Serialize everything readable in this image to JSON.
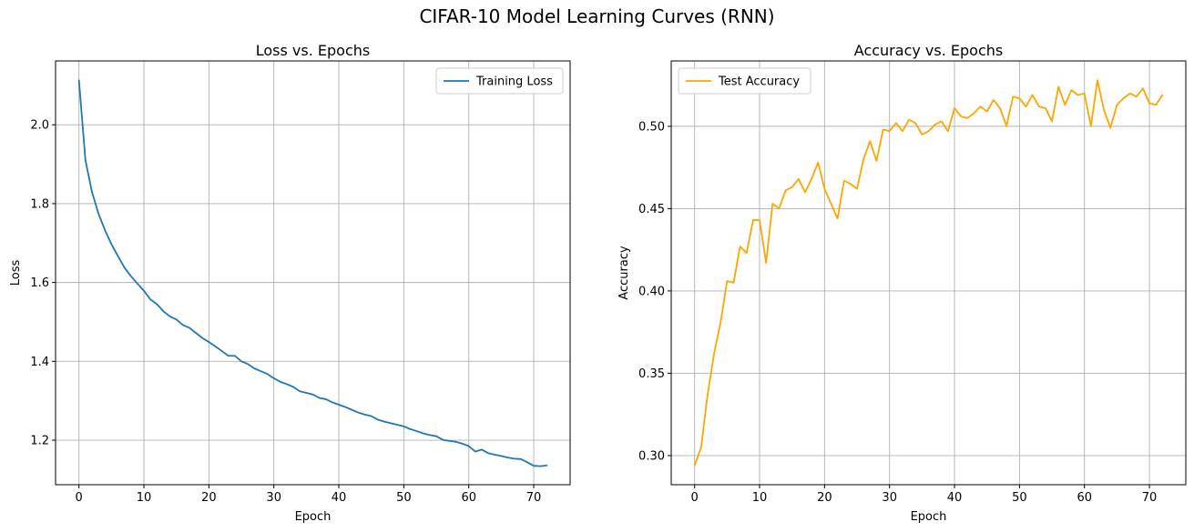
{
  "figure": {
    "suptitle": "CIFAR-10 Model Learning Curves (RNN)"
  },
  "colors": {
    "loss": "#1f77b4",
    "accuracy": "#ffa500",
    "grid": "#b0b0b0",
    "axis": "#000000"
  },
  "chart_data": [
    {
      "type": "line",
      "title": "Loss vs. Epochs",
      "xlabel": "Epoch",
      "ylabel": "Loss",
      "xlim": [
        -3.6,
        75.6
      ],
      "ylim": [
        1.087,
        2.162
      ],
      "xticks": [
        0,
        10,
        20,
        30,
        40,
        50,
        60,
        70
      ],
      "yticks": [
        1.2,
        1.4,
        1.6,
        1.8,
        2.0
      ],
      "ytick_labels": [
        "1.2",
        "1.4",
        "1.6",
        "1.8",
        "2.0"
      ],
      "grid": true,
      "legend": "upper right",
      "series": [
        {
          "name": "Training Loss",
          "color": "#1f77b4",
          "x": [
            0,
            1,
            2,
            3,
            4,
            5,
            6,
            7,
            8,
            9,
            10,
            11,
            12,
            13,
            14,
            15,
            16,
            17,
            18,
            19,
            20,
            21,
            22,
            23,
            24,
            25,
            26,
            27,
            28,
            29,
            30,
            31,
            32,
            33,
            34,
            35,
            36,
            37,
            38,
            39,
            40,
            41,
            42,
            43,
            44,
            45,
            46,
            47,
            48,
            49,
            50,
            51,
            52,
            53,
            54,
            55,
            56,
            57,
            58,
            59,
            60,
            61,
            62,
            63,
            64,
            65,
            66,
            67,
            68,
            69,
            70,
            71,
            72
          ],
          "y": [
            2.113,
            1.91,
            1.83,
            1.775,
            1.733,
            1.697,
            1.667,
            1.638,
            1.616,
            1.597,
            1.579,
            1.557,
            1.545,
            1.527,
            1.514,
            1.506,
            1.492,
            1.485,
            1.472,
            1.459,
            1.449,
            1.438,
            1.426,
            1.414,
            1.414,
            1.4,
            1.393,
            1.382,
            1.375,
            1.368,
            1.357,
            1.348,
            1.342,
            1.335,
            1.324,
            1.32,
            1.316,
            1.307,
            1.304,
            1.296,
            1.29,
            1.284,
            1.277,
            1.27,
            1.265,
            1.261,
            1.252,
            1.247,
            1.243,
            1.239,
            1.235,
            1.228,
            1.223,
            1.217,
            1.213,
            1.21,
            1.201,
            1.198,
            1.196,
            1.191,
            1.185,
            1.171,
            1.176,
            1.167,
            1.163,
            1.16,
            1.156,
            1.153,
            1.152,
            1.144,
            1.135,
            1.134,
            1.136
          ]
        }
      ]
    },
    {
      "type": "line",
      "title": "Accuracy vs. Epochs",
      "xlabel": "Epoch",
      "ylabel": "Accuracy",
      "xlim": [
        -3.6,
        75.6
      ],
      "ylim": [
        0.2823,
        0.5397
      ],
      "xticks": [
        0,
        10,
        20,
        30,
        40,
        50,
        60,
        70
      ],
      "yticks": [
        0.3,
        0.35,
        0.4,
        0.45,
        0.5
      ],
      "ytick_labels": [
        "0.30",
        "0.35",
        "0.40",
        "0.45",
        "0.50"
      ],
      "grid": true,
      "legend": "upper left",
      "series": [
        {
          "name": "Test Accuracy",
          "color": "#ffa500",
          "x": [
            0,
            1,
            2,
            3,
            4,
            5,
            6,
            7,
            8,
            9,
            10,
            11,
            12,
            13,
            14,
            15,
            16,
            17,
            18,
            19,
            20,
            21,
            22,
            23,
            24,
            25,
            26,
            27,
            28,
            29,
            30,
            31,
            32,
            33,
            34,
            35,
            36,
            37,
            38,
            39,
            40,
            41,
            42,
            43,
            44,
            45,
            46,
            47,
            48,
            49,
            50,
            51,
            52,
            53,
            54,
            55,
            56,
            57,
            58,
            59,
            60,
            61,
            62,
            63,
            64,
            65,
            66,
            67,
            68,
            69,
            70,
            71,
            72
          ],
          "y": [
            0.294,
            0.305,
            0.337,
            0.362,
            0.381,
            0.406,
            0.405,
            0.427,
            0.423,
            0.443,
            0.443,
            0.417,
            0.453,
            0.45,
            0.461,
            0.463,
            0.468,
            0.46,
            0.468,
            0.478,
            0.462,
            0.453,
            0.444,
            0.467,
            0.465,
            0.462,
            0.48,
            0.491,
            0.479,
            0.498,
            0.497,
            0.502,
            0.497,
            0.504,
            0.502,
            0.495,
            0.497,
            0.501,
            0.503,
            0.497,
            0.511,
            0.506,
            0.505,
            0.508,
            0.512,
            0.509,
            0.516,
            0.511,
            0.5,
            0.518,
            0.517,
            0.512,
            0.519,
            0.512,
            0.511,
            0.503,
            0.524,
            0.513,
            0.522,
            0.519,
            0.52,
            0.5,
            0.528,
            0.51,
            0.499,
            0.513,
            0.517,
            0.52,
            0.518,
            0.523,
            0.514,
            0.513,
            0.519
          ]
        }
      ]
    }
  ]
}
